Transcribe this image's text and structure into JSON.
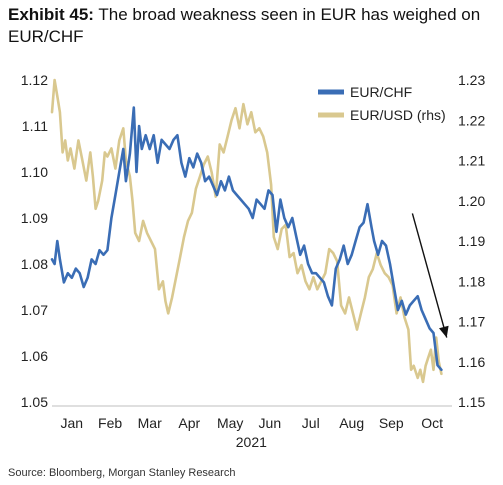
{
  "title": {
    "lead": "Exhibit 45:",
    "text": "The broad weakness seen in EUR has weighed on EUR/CHF"
  },
  "source": "Source: Bloomberg, Morgan Stanley Research",
  "colors": {
    "eurchf": "#3a6db5",
    "eurusd": "#d9c88f",
    "arrow": "#111111"
  },
  "chart_data": {
    "type": "line",
    "year_label": "2021",
    "x_ticks": [
      "Jan",
      "Feb",
      "Mar",
      "Apr",
      "May",
      "Jun",
      "Jul",
      "Aug",
      "Sep",
      "Oct"
    ],
    "y_left": {
      "min": 1.05,
      "max": 1.12,
      "ticks": [
        "1.05",
        "1.06",
        "1.07",
        "1.08",
        "1.09",
        "1.10",
        "1.11",
        "1.12"
      ]
    },
    "y_right": {
      "min": 1.15,
      "max": 1.23,
      "ticks": [
        "1.15",
        "1.16",
        "1.17",
        "1.18",
        "1.19",
        "1.20",
        "1.21",
        "1.22",
        "1.23"
      ]
    },
    "legend": {
      "position": "top-right"
    },
    "series": [
      {
        "name": "EUR/CHF",
        "axis": "left",
        "color": "#3a6db5",
        "values": [
          [
            "2021-01-01",
            1.081
          ],
          [
            "2021-01-03",
            1.08
          ],
          [
            "2021-01-05",
            1.085
          ],
          [
            "2021-01-07",
            1.081
          ],
          [
            "2021-01-10",
            1.076
          ],
          [
            "2021-01-13",
            1.078
          ],
          [
            "2021-01-16",
            1.077
          ],
          [
            "2021-01-19",
            1.079
          ],
          [
            "2021-01-22",
            1.078
          ],
          [
            "2021-01-25",
            1.075
          ],
          [
            "2021-01-28",
            1.077
          ],
          [
            "2021-01-31",
            1.081
          ],
          [
            "2021-02-03",
            1.08
          ],
          [
            "2021-02-06",
            1.083
          ],
          [
            "2021-02-09",
            1.082
          ],
          [
            "2021-02-12",
            1.083
          ],
          [
            "2021-02-15",
            1.09
          ],
          [
            "2021-02-18",
            1.095
          ],
          [
            "2021-02-21",
            1.1
          ],
          [
            "2021-02-24",
            1.105
          ],
          [
            "2021-02-26",
            1.098
          ],
          [
            "2021-03-01",
            1.104
          ],
          [
            "2021-03-04",
            1.114
          ],
          [
            "2021-03-06",
            1.1
          ],
          [
            "2021-03-08",
            1.11
          ],
          [
            "2021-03-10",
            1.105
          ],
          [
            "2021-03-13",
            1.108
          ],
          [
            "2021-03-16",
            1.105
          ],
          [
            "2021-03-19",
            1.108
          ],
          [
            "2021-03-22",
            1.102
          ],
          [
            "2021-03-25",
            1.107
          ],
          [
            "2021-03-28",
            1.106
          ],
          [
            "2021-03-31",
            1.105
          ],
          [
            "2021-04-03",
            1.107
          ],
          [
            "2021-04-06",
            1.108
          ],
          [
            "2021-04-09",
            1.102
          ],
          [
            "2021-04-12",
            1.099
          ],
          [
            "2021-04-15",
            1.103
          ],
          [
            "2021-04-18",
            1.101
          ],
          [
            "2021-04-21",
            1.104
          ],
          [
            "2021-04-24",
            1.102
          ],
          [
            "2021-04-27",
            1.098
          ],
          [
            "2021-04-30",
            1.099
          ],
          [
            "2021-05-03",
            1.097
          ],
          [
            "2021-05-06",
            1.095
          ],
          [
            "2021-05-09",
            1.098
          ],
          [
            "2021-05-12",
            1.096
          ],
          [
            "2021-05-15",
            1.099
          ],
          [
            "2021-05-18",
            1.096
          ],
          [
            "2021-05-21",
            1.095
          ],
          [
            "2021-05-24",
            1.094
          ],
          [
            "2021-05-27",
            1.093
          ],
          [
            "2021-05-30",
            1.092
          ],
          [
            "2021-06-02",
            1.09
          ],
          [
            "2021-06-05",
            1.094
          ],
          [
            "2021-06-08",
            1.093
          ],
          [
            "2021-06-11",
            1.092
          ],
          [
            "2021-06-14",
            1.096
          ],
          [
            "2021-06-17",
            1.095
          ],
          [
            "2021-06-20",
            1.087
          ],
          [
            "2021-06-23",
            1.094
          ],
          [
            "2021-06-26",
            1.09
          ],
          [
            "2021-06-29",
            1.088
          ],
          [
            "2021-07-02",
            1.09
          ],
          [
            "2021-07-05",
            1.086
          ],
          [
            "2021-07-08",
            1.082
          ],
          [
            "2021-07-11",
            1.084
          ],
          [
            "2021-07-14",
            1.08
          ],
          [
            "2021-07-17",
            1.078
          ],
          [
            "2021-07-20",
            1.078
          ],
          [
            "2021-07-23",
            1.077
          ],
          [
            "2021-07-26",
            1.076
          ],
          [
            "2021-07-29",
            1.073
          ],
          [
            "2021-08-01",
            1.071
          ],
          [
            "2021-08-04",
            1.079
          ],
          [
            "2021-08-07",
            1.081
          ],
          [
            "2021-08-10",
            1.084
          ],
          [
            "2021-08-13",
            1.08
          ],
          [
            "2021-08-16",
            1.082
          ],
          [
            "2021-08-19",
            1.085
          ],
          [
            "2021-08-22",
            1.088
          ],
          [
            "2021-08-25",
            1.089
          ],
          [
            "2021-08-28",
            1.093
          ],
          [
            "2021-08-31",
            1.088
          ],
          [
            "2021-09-02",
            1.085
          ],
          [
            "2021-09-05",
            1.082
          ],
          [
            "2021-09-08",
            1.085
          ],
          [
            "2021-09-11",
            1.084
          ],
          [
            "2021-09-14",
            1.08
          ],
          [
            "2021-09-17",
            1.075
          ],
          [
            "2021-09-20",
            1.07
          ],
          [
            "2021-09-23",
            1.072
          ],
          [
            "2021-09-26",
            1.069
          ],
          [
            "2021-09-29",
            1.071
          ],
          [
            "2021-10-02",
            1.072
          ],
          [
            "2021-10-05",
            1.073
          ],
          [
            "2021-10-08",
            1.07
          ],
          [
            "2021-10-11",
            1.068
          ],
          [
            "2021-10-14",
            1.066
          ],
          [
            "2021-10-17",
            1.065
          ],
          [
            "2021-10-20",
            1.058
          ],
          [
            "2021-10-23",
            1.057
          ]
        ]
      },
      {
        "name": "EUR/USD (rhs)",
        "axis": "right",
        "color": "#d9c88f",
        "values": [
          [
            "2021-01-01",
            1.222
          ],
          [
            "2021-01-03",
            1.23
          ],
          [
            "2021-01-05",
            1.226
          ],
          [
            "2021-01-07",
            1.222
          ],
          [
            "2021-01-09",
            1.212
          ],
          [
            "2021-01-11",
            1.215
          ],
          [
            "2021-01-13",
            1.21
          ],
          [
            "2021-01-15",
            1.213
          ],
          [
            "2021-01-18",
            1.208
          ],
          [
            "2021-01-21",
            1.215
          ],
          [
            "2021-01-24",
            1.21
          ],
          [
            "2021-01-27",
            1.205
          ],
          [
            "2021-01-30",
            1.212
          ],
          [
            "2021-02-01",
            1.206
          ],
          [
            "2021-02-03",
            1.198
          ],
          [
            "2021-02-05",
            1.2
          ],
          [
            "2021-02-08",
            1.205
          ],
          [
            "2021-02-10",
            1.212
          ],
          [
            "2021-02-12",
            1.211
          ],
          [
            "2021-02-15",
            1.213
          ],
          [
            "2021-02-18",
            1.208
          ],
          [
            "2021-02-21",
            1.215
          ],
          [
            "2021-02-24",
            1.218
          ],
          [
            "2021-02-26",
            1.21
          ],
          [
            "2021-03-01",
            1.206
          ],
          [
            "2021-03-03",
            1.2
          ],
          [
            "2021-03-05",
            1.192
          ],
          [
            "2021-03-08",
            1.19
          ],
          [
            "2021-03-11",
            1.195
          ],
          [
            "2021-03-14",
            1.192
          ],
          [
            "2021-03-17",
            1.19
          ],
          [
            "2021-03-20",
            1.188
          ],
          [
            "2021-03-23",
            1.178
          ],
          [
            "2021-03-26",
            1.18
          ],
          [
            "2021-03-28",
            1.175
          ],
          [
            "2021-03-30",
            1.172
          ],
          [
            "2021-04-02",
            1.176
          ],
          [
            "2021-04-05",
            1.181
          ],
          [
            "2021-04-08",
            1.186
          ],
          [
            "2021-04-11",
            1.191
          ],
          [
            "2021-04-14",
            1.195
          ],
          [
            "2021-04-17",
            1.197
          ],
          [
            "2021-04-20",
            1.203
          ],
          [
            "2021-04-23",
            1.206
          ],
          [
            "2021-04-26",
            1.209
          ],
          [
            "2021-04-29",
            1.211
          ],
          [
            "2021-05-02",
            1.207
          ],
          [
            "2021-05-05",
            1.201
          ],
          [
            "2021-05-08",
            1.214
          ],
          [
            "2021-05-11",
            1.212
          ],
          [
            "2021-05-14",
            1.216
          ],
          [
            "2021-05-17",
            1.22
          ],
          [
            "2021-05-20",
            1.223
          ],
          [
            "2021-05-23",
            1.218
          ],
          [
            "2021-05-26",
            1.224
          ],
          [
            "2021-05-29",
            1.219
          ],
          [
            "2021-06-01",
            1.222
          ],
          [
            "2021-06-04",
            1.217
          ],
          [
            "2021-06-07",
            1.218
          ],
          [
            "2021-06-10",
            1.216
          ],
          [
            "2021-06-13",
            1.212
          ],
          [
            "2021-06-16",
            1.204
          ],
          [
            "2021-06-18",
            1.191
          ],
          [
            "2021-06-21",
            1.188
          ],
          [
            "2021-06-24",
            1.193
          ],
          [
            "2021-06-27",
            1.194
          ],
          [
            "2021-06-30",
            1.186
          ],
          [
            "2021-07-03",
            1.187
          ],
          [
            "2021-07-06",
            1.182
          ],
          [
            "2021-07-09",
            1.184
          ],
          [
            "2021-07-12",
            1.18
          ],
          [
            "2021-07-15",
            1.178
          ],
          [
            "2021-07-18",
            1.181
          ],
          [
            "2021-07-21",
            1.178
          ],
          [
            "2021-07-24",
            1.18
          ],
          [
            "2021-07-27",
            1.182
          ],
          [
            "2021-07-30",
            1.188
          ],
          [
            "2021-08-02",
            1.187
          ],
          [
            "2021-08-05",
            1.185
          ],
          [
            "2021-08-08",
            1.174
          ],
          [
            "2021-08-11",
            1.172
          ],
          [
            "2021-08-14",
            1.176
          ],
          [
            "2021-08-17",
            1.172
          ],
          [
            "2021-08-20",
            1.168
          ],
          [
            "2021-08-23",
            1.172
          ],
          [
            "2021-08-26",
            1.176
          ],
          [
            "2021-08-29",
            1.181
          ],
          [
            "2021-09-01",
            1.183
          ],
          [
            "2021-09-04",
            1.187
          ],
          [
            "2021-09-07",
            1.184
          ],
          [
            "2021-09-10",
            1.182
          ],
          [
            "2021-09-13",
            1.181
          ],
          [
            "2021-09-16",
            1.179
          ],
          [
            "2021-09-19",
            1.172
          ],
          [
            "2021-09-22",
            1.176
          ],
          [
            "2021-09-25",
            1.171
          ],
          [
            "2021-09-28",
            1.168
          ],
          [
            "2021-09-30",
            1.158
          ],
          [
            "2021-10-02",
            1.159
          ],
          [
            "2021-10-05",
            1.156
          ],
          [
            "2021-10-07",
            1.158
          ],
          [
            "2021-10-09",
            1.155
          ],
          [
            "2021-10-11",
            1.159
          ],
          [
            "2021-10-13",
            1.161
          ],
          [
            "2021-10-15",
            1.163
          ],
          [
            "2021-10-17",
            1.158
          ],
          [
            "2021-10-19",
            1.166
          ],
          [
            "2021-10-21",
            1.16
          ],
          [
            "2021-10-23",
            1.157
          ]
        ]
      }
    ],
    "annotations": [
      {
        "type": "arrow",
        "from": [
          "2021-10-01",
          1.091
        ],
        "to": [
          "2021-10-27",
          1.064
        ],
        "axis": "left"
      }
    ]
  }
}
